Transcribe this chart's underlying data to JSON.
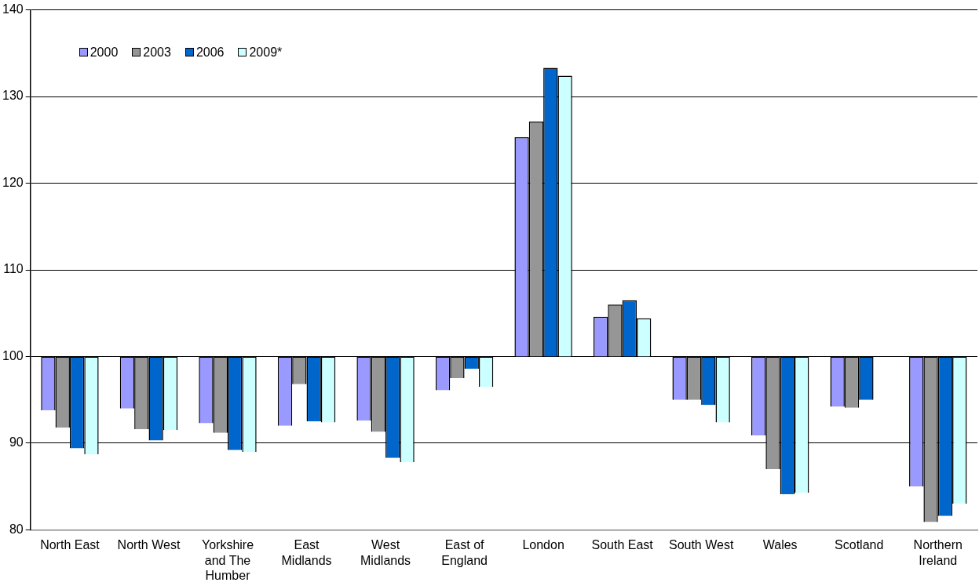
{
  "chart_data": {
    "type": "bar",
    "categories": [
      "North East",
      "North West",
      "Yorkshire and The Humber",
      "East Midlands",
      "West Midlands",
      "East of England",
      "London",
      "South East",
      "South West",
      "Wales",
      "Scotland",
      "Northern Ireland"
    ],
    "series": [
      {
        "name": "2000",
        "color": "#9999ff",
        "base": [
          100,
          100,
          100,
          100,
          100,
          100,
          100,
          100,
          100,
          100,
          100,
          100
        ],
        "values": [
          -6.2,
          -6.0,
          -7.7,
          -8.0,
          -7.4,
          -3.9,
          25.3,
          4.6,
          -5.0,
          -9.1,
          -5.8,
          -15.0
        ]
      },
      {
        "name": "2003",
        "color": "#969696",
        "base": [
          100,
          100,
          100,
          100,
          100,
          100,
          100,
          100,
          100,
          100,
          100,
          100
        ],
        "values": [
          -8.2,
          -8.4,
          -8.8,
          -3.2,
          -8.7,
          -2.5,
          27.1,
          6.0,
          -5.0,
          -13.0,
          -5.9,
          -19.1
        ]
      },
      {
        "name": "2006",
        "color": "#0066cc",
        "base": [
          100,
          100,
          100,
          100,
          100,
          100,
          100,
          100,
          100,
          100,
          100,
          100
        ],
        "values": [
          -10.6,
          -9.7,
          -10.8,
          -7.5,
          -11.7,
          -1.4,
          33.3,
          6.5,
          -5.6,
          -15.9,
          -5.0,
          -18.4
        ]
      },
      {
        "name": "2009*",
        "color": "#ccffff",
        "base": [
          100,
          100,
          100,
          100,
          100,
          100,
          100,
          100,
          100,
          100,
          null,
          100
        ],
        "values": [
          -11.3,
          -8.5,
          -11.0,
          -7.6,
          -12.2,
          -3.5,
          32.4,
          4.4,
          -7.6,
          -15.7,
          null,
          -17.0
        ]
      }
    ],
    "ylim": [
      80,
      140
    ],
    "yticks": [
      80,
      90,
      100,
      110,
      120,
      130,
      140
    ],
    "grid": "y",
    "legend": "top left"
  }
}
